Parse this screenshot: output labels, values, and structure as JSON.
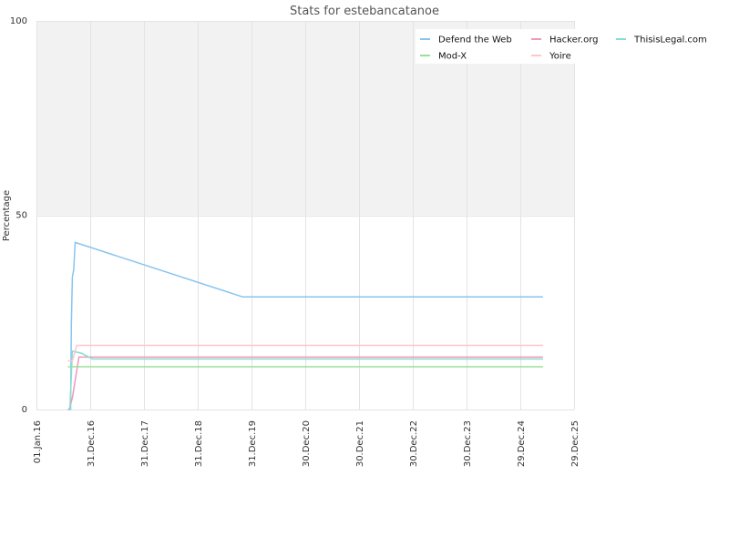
{
  "chart_data": {
    "type": "line",
    "title": "Stats for estebancatanoe",
    "ylabel": "Percentage",
    "xlabel": "",
    "ylim": [
      0,
      100
    ],
    "y_ticks": [
      0,
      50,
      100
    ],
    "x_range": [
      "2016-01-01",
      "2025-12-29"
    ],
    "x_ticks": [
      "01.Jan.16",
      "31.Dec.16",
      "31.Dec.17",
      "31.Dec.18",
      "31.Dec.19",
      "30.Dec.20",
      "30.Dec.21",
      "30.Dec.22",
      "30.Dec.23",
      "29.Dec.24",
      "29.Dec.25"
    ],
    "x_tick_dates": [
      "2016-01-01",
      "2016-12-31",
      "2017-12-31",
      "2018-12-31",
      "2019-12-31",
      "2020-12-30",
      "2021-12-30",
      "2022-12-30",
      "2023-12-30",
      "2024-12-29",
      "2025-12-29"
    ],
    "upper_band": {
      "from": 50,
      "to": 100,
      "color": "#f2f2f2"
    },
    "grid": true,
    "legend_position": "top-right",
    "series": [
      {
        "name": "Defend the Web",
        "color": "#88c4ee",
        "points": [
          [
            "2016-08-01",
            0
          ],
          [
            "2016-08-20",
            0
          ],
          [
            "2016-08-25",
            22
          ],
          [
            "2016-09-01",
            34
          ],
          [
            "2016-09-10",
            36
          ],
          [
            "2016-09-20",
            43
          ],
          [
            "2019-10-31",
            29
          ],
          [
            "2025-06-01",
            29
          ]
        ]
      },
      {
        "name": "Hacker.org",
        "color": "#ee99bb",
        "points": [
          [
            "2016-08-10",
            0
          ],
          [
            "2016-09-01",
            3
          ],
          [
            "2016-10-15",
            13.5
          ],
          [
            "2025-06-01",
            13.5
          ]
        ]
      },
      {
        "name": "ThisisLegal.com",
        "color": "#88ddd0",
        "points": [
          [
            "2016-08-15",
            0
          ],
          [
            "2016-09-01",
            15
          ],
          [
            "2016-11-01",
            14.5
          ],
          [
            "2017-01-15",
            13
          ],
          [
            "2025-06-01",
            13
          ]
        ]
      },
      {
        "name": "Mod-X",
        "color": "#99e099",
        "points": [
          [
            "2016-08-01",
            11
          ],
          [
            "2025-06-01",
            11
          ]
        ]
      },
      {
        "name": "Yoire",
        "color": "#ffc4cc",
        "points": [
          [
            "2016-08-01",
            12.5
          ],
          [
            "2016-09-01",
            12.5
          ],
          [
            "2016-10-01",
            16.5
          ],
          [
            "2025-06-01",
            16.5
          ]
        ]
      }
    ],
    "legend": {
      "rows": [
        [
          "Defend the Web",
          "Hacker.org",
          "ThisisLegal.com"
        ],
        [
          "Mod-X",
          "Yoire"
        ]
      ]
    }
  }
}
